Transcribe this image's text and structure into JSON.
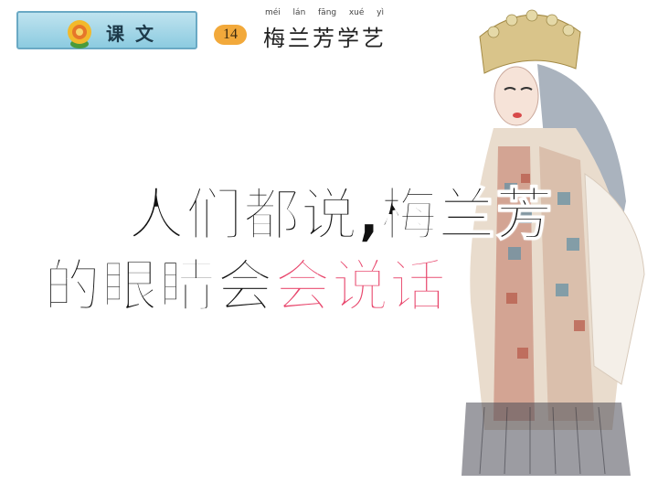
{
  "header": {
    "badge_label": "课文",
    "lesson_number": "14",
    "pinyin": [
      "méi",
      "lán",
      "fāng",
      "xué",
      "yì"
    ],
    "title": "梅兰芳学艺"
  },
  "main_text": {
    "line1": "人们都说,梅兰芳",
    "line2_start": "的眼睛会",
    "line2_highlight": "会说话",
    "line2_end": "。"
  },
  "colors": {
    "badge": "#8ccbe0",
    "lesson_number": "#f2a93b",
    "highlight": "#e8466c",
    "text": "#111111"
  },
  "icons": {
    "badge": "flower-icon",
    "illustration": "peking-opera-figure"
  }
}
